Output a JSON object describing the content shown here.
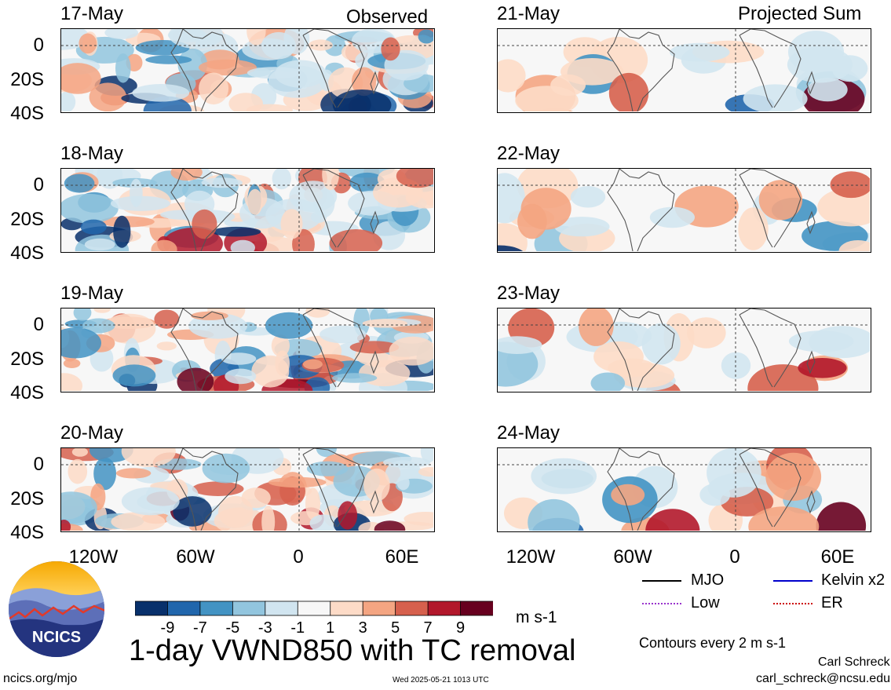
{
  "chart_data": {
    "type": "heatmap",
    "title": "1-day VWND850 with TC removal",
    "column_headers": [
      "Observed",
      "Projected Sum"
    ],
    "panels": [
      {
        "date": "17-May",
        "column": "observed"
      },
      {
        "date": "18-May",
        "column": "observed"
      },
      {
        "date": "19-May",
        "column": "observed"
      },
      {
        "date": "20-May",
        "column": "observed"
      },
      {
        "date": "21-May",
        "column": "projected"
      },
      {
        "date": "22-May",
        "column": "projected"
      },
      {
        "date": "23-May",
        "column": "projected"
      },
      {
        "date": "24-May",
        "column": "projected"
      }
    ],
    "y_ticks": [
      "0",
      "20S",
      "40S"
    ],
    "x_ticks": [
      "120W",
      "60W",
      "0",
      "60E"
    ],
    "colorbar": {
      "ticks": [
        "-9",
        "-7",
        "-5",
        "-3",
        "-1",
        "1",
        "3",
        "5",
        "7",
        "9"
      ],
      "units": "m s-1",
      "colors": [
        "#08306b",
        "#2166ac",
        "#4393c3",
        "#92c5de",
        "#d1e5f0",
        "#f7f7f7",
        "#fddbc7",
        "#f4a582",
        "#d6604d",
        "#b2182b",
        "#67001f"
      ]
    },
    "legend": [
      {
        "name": "MJO",
        "color": "#000000"
      },
      {
        "name": "Kelvin x2",
        "color": "#0000cc"
      },
      {
        "name": "Low",
        "color": "#9933cc"
      },
      {
        "name": "ER",
        "color": "#cc0000"
      }
    ],
    "contour_note": "Contours every 2 m s-1"
  },
  "logo": {
    "text": "NCICS"
  },
  "footer": {
    "url": "ncics.org/mjo",
    "timestamp": "Wed 2025-05-21 1013 UTC",
    "author": "Carl Schreck",
    "email": "carl_schreck@ncsu.edu"
  }
}
